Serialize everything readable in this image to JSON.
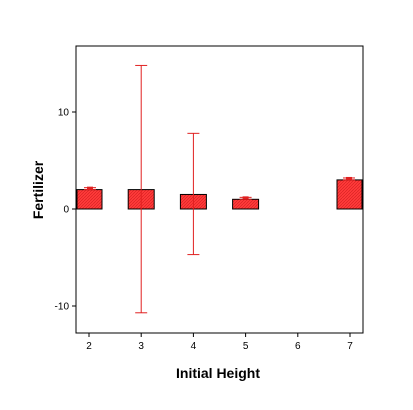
{
  "chart_data": {
    "type": "bar",
    "xlabel": "Initial Height",
    "ylabel": "Fertilizer",
    "x_ticks": [
      "2",
      "3",
      "4",
      "5",
      "6",
      "7"
    ],
    "y_ticks": [
      -10,
      0,
      10
    ],
    "ylim": [
      -13,
      17
    ],
    "grid": false,
    "categories": [
      "2",
      "3",
      "4",
      "5",
      "7"
    ],
    "values": [
      2.0,
      2.0,
      1.5,
      1.0,
      3.0
    ],
    "error_bars": [
      {
        "category": "2",
        "low": 2.0,
        "high": 2.2
      },
      {
        "category": "3",
        "low": -10.7,
        "high": 14.8
      },
      {
        "category": "4",
        "low": -4.7,
        "high": 7.8
      },
      {
        "category": "5",
        "low": 1.0,
        "high": 1.2
      },
      {
        "category": "7",
        "low": 3.0,
        "high": 3.2
      }
    ],
    "colors": {
      "bar_fill": "#ff3a3a",
      "bar_stroke": "#000000",
      "error_bar": "#e02020",
      "axis": "#000000"
    }
  }
}
